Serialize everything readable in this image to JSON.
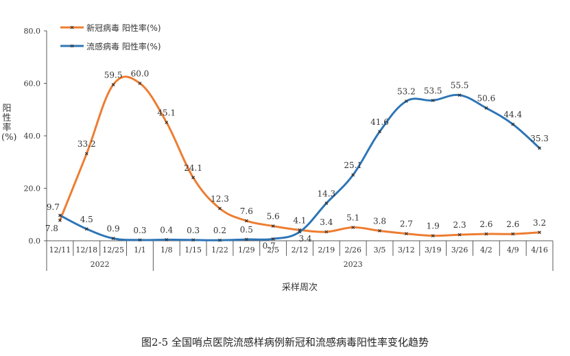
{
  "chart_data": {
    "type": "line",
    "categories": [
      "12/11",
      "12/18",
      "12/25",
      "1/1",
      "1/8",
      "1/15",
      "1/22",
      "1/29",
      "2/5",
      "2/12",
      "2/19",
      "2/26",
      "3/5",
      "3/12",
      "3/19",
      "3/26",
      "4/2",
      "4/9",
      "4/16"
    ],
    "year_groups": [
      {
        "label": "2022",
        "start": 0,
        "end": 3
      },
      {
        "label": "2023",
        "start": 4,
        "end": 18
      }
    ],
    "series": [
      {
        "name": "新冠病毒 阳性率(%)",
        "color": "#ED7D31",
        "values": [
          7.8,
          33.2,
          59.5,
          60.0,
          45.1,
          24.1,
          12.3,
          7.6,
          5.6,
          4.1,
          3.4,
          5.1,
          3.8,
          2.7,
          1.9,
          2.3,
          2.6,
          2.6,
          3.2
        ]
      },
      {
        "name": "流感病毒 阳性率(%)",
        "color": "#2E75B6",
        "values": [
          9.7,
          4.5,
          0.9,
          0.3,
          0.4,
          0.3,
          0.2,
          0.5,
          0.7,
          3.4,
          14.3,
          25.1,
          41.6,
          53.2,
          53.5,
          55.5,
          50.6,
          44.4,
          35.3
        ]
      }
    ],
    "y_ticks": [
      "0.0",
      "20.0",
      "40.0",
      "60.0",
      "80.0"
    ],
    "ylim": [
      0,
      80
    ],
    "ylabel": "阳性率(%)",
    "xlabel": "采样周次",
    "legend_position": "top-left",
    "grid": false
  },
  "caption": "图2-5 全国哨点医院流感样病例新冠和流感病毒阳性率变化趋势"
}
